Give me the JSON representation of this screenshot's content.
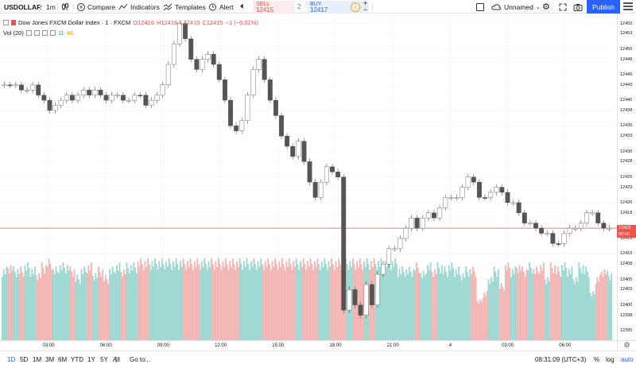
{
  "toolbar": {
    "symbol": "USDOLLAR",
    "interval": "1m",
    "compare_label": "Compare",
    "indicators_label": "Indicators",
    "templates_label": "Templates",
    "alert_label": "Alert",
    "sell_label": "SELL",
    "sell_price": "12415",
    "spread": "2",
    "buy_label": "BUY",
    "buy_price": "12417",
    "info": "i",
    "plus": "+",
    "minus": "−",
    "layout_name": "Unnamed",
    "publish_label": "Publish",
    "icons": [
      "candles-icon",
      "compare-icon",
      "indicators-icon",
      "templates-icon",
      "alert-icon",
      "replay-icon",
      "checkbox-icon",
      "cloud-icon",
      "chevron-down-icon",
      "gear-icon",
      "fullscreen-icon",
      "camera-icon",
      "menu-icon"
    ]
  },
  "legend": {
    "title": "Dow Jones FXCM Dollar Index · 1 · FXCM",
    "open": "O12416",
    "high": "H12416",
    "low": "L12415",
    "close": "C12415",
    "change": "−1 (−0.01%)",
    "vol_label": "Vol (20)",
    "vol_value": "11",
    "vol_ma": "46"
  },
  "price_scale": {
    "ticks": [
      "12455",
      "12453",
      "12450",
      "12448",
      "12445",
      "12443",
      "12440",
      "12438",
      "12435",
      "12433",
      "12430",
      "12428",
      "12425",
      "12423",
      "12420",
      "12418",
      "12415",
      "12413",
      "12410",
      "12408",
      "12405",
      "12403",
      "12400",
      "12398",
      "12395"
    ],
    "current_price": "12415",
    "countdown": "00:50"
  },
  "time_axis": {
    "ticks": [
      "03:00",
      "06:00",
      "09:00",
      "12:00",
      "15:00",
      "18:00",
      "21:00",
      "4",
      "03:00",
      "06:00"
    ]
  },
  "bottom_bar": {
    "ranges": [
      "1D",
      "5D",
      "1M",
      "3M",
      "6M",
      "YTD",
      "1Y",
      "5Y",
      "All"
    ],
    "active_range": "1D",
    "goto_label": "Go to...",
    "clock": "08:31:09 (UTC+3)",
    "percent_label": "%",
    "log_label": "log",
    "auto_label": "auto"
  },
  "colors": {
    "up": "#26a69a",
    "down": "#ef5350",
    "accent": "#2962ff",
    "price_line": "#ef5350"
  },
  "chart_data": {
    "type": "line",
    "series": [
      {
        "values": [
          12443,
          12443,
          12443,
          12442,
          12442,
          12443,
          12441,
          12440,
          12438,
          12439,
          12440,
          12441,
          12440,
          12441,
          12442,
          12441,
          12442,
          12441,
          12440,
          12441,
          12441,
          12440,
          12440,
          12441,
          12441,
          12439,
          12440,
          12441,
          12443,
          12447,
          12451,
          12455,
          12452,
          12448,
          12446,
          12448,
          12449,
          12447,
          12444,
          12440,
          12435,
          12434,
          12436,
          12441,
          12446,
          12448,
          12444,
          12440,
          12437,
          12433,
          12431,
          12429,
          12432,
          12428,
          12424,
          12421,
          12424,
          12427,
          12426,
          12425,
          12399,
          12403,
          12400,
          12398,
          12404,
          12400,
          12406,
          12408,
          12411,
          12411,
          12413,
          12415,
          12417,
          12415,
          12417,
          12418,
          12417,
          12419,
          12421,
          12421,
          12421,
          12423,
          12425,
          12424,
          12421,
          12421,
          12422,
          12423,
          12422,
          12420,
          12420,
          12418,
          12416,
          12416,
          12415,
          12414,
          12414,
          12412,
          12412,
          12414,
          12415,
          12415,
          12416,
          12418,
          12418,
          12416,
          12415,
          12415
        ],
        "volume": [
          0.9,
          0.95,
          0.9,
          0.9,
          0.95,
          0.9,
          0.85,
          0.95,
          1.0,
          0.9,
          0.95,
          0.95,
          0.9,
          0.8,
          0.9,
          0.95,
          0.85,
          0.9,
          0.8,
          0.9,
          0.95,
          0.9,
          0.95,
          0.95,
          1.0,
          1.0,
          1.0,
          1.0,
          1.0,
          1.0,
          1.0,
          1.0,
          1.0,
          1.0,
          1.0,
          1.0,
          1.0,
          1.0,
          1.0,
          1.0,
          1.0,
          1.0,
          1.0,
          1.0,
          1.0,
          1.0,
          1.0,
          1.0,
          1.0,
          1.0,
          1.0,
          1.0,
          1.0,
          1.0,
          1.0,
          1.0,
          1.0,
          1.0,
          1.0,
          1.0,
          1.0,
          1.0,
          1.0,
          1.0,
          1.0,
          1.0,
          1.0,
          1.0,
          1.0,
          1.0,
          0.9,
          0.9,
          0.9,
          0.95,
          0.85,
          0.95,
          0.9,
          0.95,
          0.9,
          0.95,
          0.9,
          0.85,
          0.9,
          0.9,
          0.5,
          0.6,
          0.8,
          0.9,
          0.7,
          0.95,
          0.9,
          0.95,
          0.9,
          0.95,
          0.9,
          0.95,
          0.8,
          0.95,
          0.9,
          0.95,
          0.9,
          0.8,
          0.95,
          0.9,
          0.6,
          0.8,
          0.9,
          0.85
        ],
        "up": [
          1,
          0,
          1,
          0,
          1,
          1,
          0,
          0,
          0,
          1,
          1,
          1,
          0,
          1,
          1,
          0,
          1,
          0,
          0,
          1,
          1,
          0,
          1,
          1,
          0,
          0,
          1,
          1,
          1,
          1,
          1,
          1,
          0,
          0,
          0,
          1,
          1,
          0,
          0,
          0,
          0,
          0,
          1,
          1,
          1,
          1,
          0,
          0,
          0,
          0,
          0,
          0,
          1,
          0,
          0,
          0,
          1,
          1,
          0,
          0,
          0,
          1,
          0,
          0,
          1,
          0,
          1,
          1,
          1,
          1,
          1,
          1,
          1,
          0,
          1,
          1,
          0,
          1,
          1,
          1,
          1,
          1,
          1,
          0,
          0,
          0,
          1,
          1,
          0,
          0,
          1,
          0,
          0,
          1,
          0,
          0,
          1,
          0,
          0,
          1,
          1,
          1,
          1,
          1,
          1,
          0,
          0,
          1
        ]
      }
    ]
  }
}
